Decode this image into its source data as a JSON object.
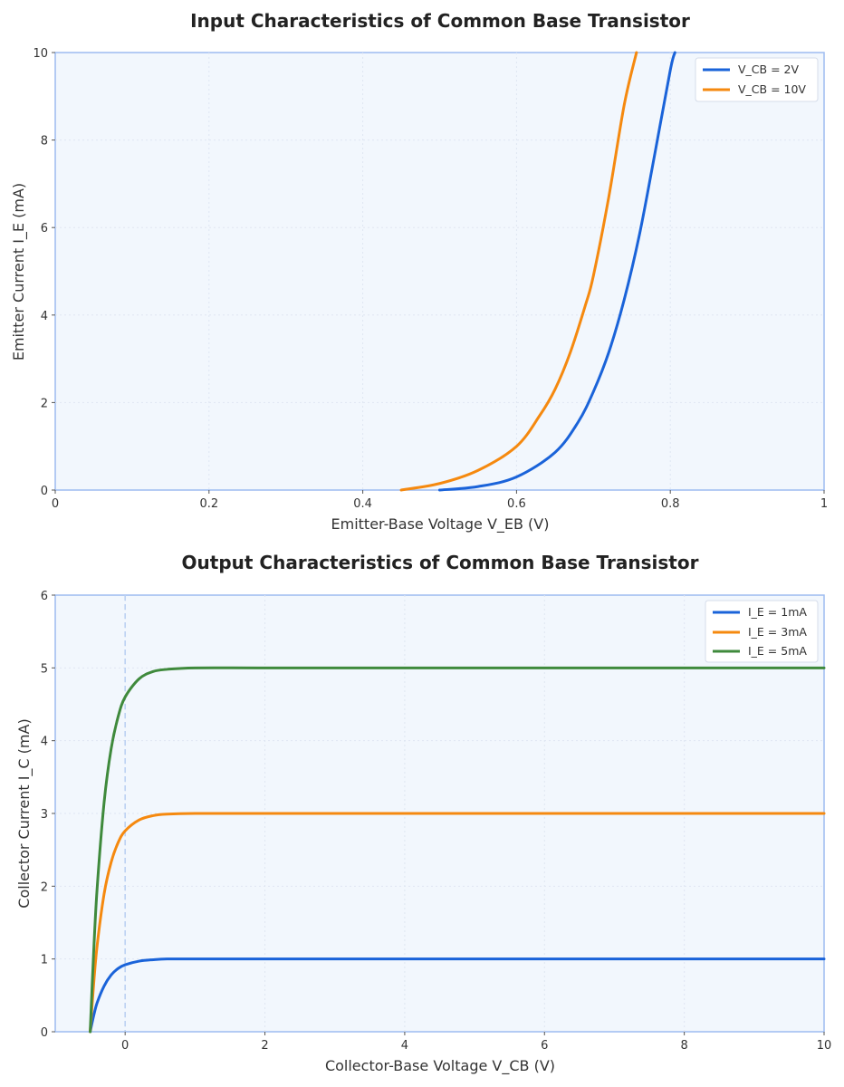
{
  "chart_data": [
    {
      "type": "line",
      "title": "Input Characteristics of Common Base Transistor",
      "xlabel": "Emitter-Base Voltage V_EB (V)",
      "ylabel": "Emitter Current I_E (mA)",
      "xlim": [
        0,
        1
      ],
      "ylim": [
        0,
        10
      ],
      "xticks": [
        0,
        0.2,
        0.4,
        0.6,
        0.8,
        1
      ],
      "xtick_labels": [
        "0",
        "0.2",
        "0.4",
        "0.6",
        "0.8",
        "1"
      ],
      "yticks": [
        0,
        2,
        4,
        6,
        8,
        10
      ],
      "ytick_labels": [
        "0",
        "2",
        "4",
        "6",
        "8",
        "10"
      ],
      "grid": true,
      "legend": "top-right",
      "series": [
        {
          "name": "V_CB = 2V",
          "color": "#1a63d9",
          "x": [
            0.5,
            0.55,
            0.6,
            0.65,
            0.68,
            0.7,
            0.72,
            0.74,
            0.76,
            0.78,
            0.8,
            0.806
          ],
          "y": [
            0.0,
            0.08,
            0.3,
            0.86,
            1.55,
            2.25,
            3.15,
            4.35,
            5.85,
            7.7,
            9.6,
            10.0
          ]
        },
        {
          "name": "V_CB = 10V",
          "color": "#f5890f",
          "x": [
            0.45,
            0.5,
            0.55,
            0.6,
            0.63,
            0.65,
            0.67,
            0.69,
            0.7,
            0.72,
            0.74,
            0.756
          ],
          "y": [
            0.0,
            0.15,
            0.45,
            1.0,
            1.7,
            2.3,
            3.15,
            4.25,
            4.9,
            6.7,
            8.8,
            10.0
          ]
        }
      ]
    },
    {
      "type": "line",
      "title": "Output Characteristics of Common Base Transistor",
      "xlabel": "Collector-Base Voltage V_CB (V)",
      "ylabel": "Collector Current I_C (mA)",
      "xlim": [
        -1,
        10
      ],
      "ylim": [
        0,
        6
      ],
      "xticks": [
        0,
        2,
        4,
        6,
        8,
        10
      ],
      "xtick_labels": [
        "0",
        "2",
        "4",
        "6",
        "8",
        "10"
      ],
      "yticks": [
        0,
        1,
        2,
        3,
        4,
        5,
        6
      ],
      "ytick_labels": [
        "0",
        "1",
        "2",
        "3",
        "4",
        "5",
        "6"
      ],
      "grid": true,
      "legend": "top-right",
      "reference_line_x": 0,
      "series": [
        {
          "name": "I_E = 1mA",
          "color": "#1a63d9",
          "x": [
            -0.5,
            -0.45,
            -0.4,
            -0.3,
            -0.2,
            -0.1,
            0,
            0.2,
            0.4,
            0.6,
            1,
            2,
            4,
            6,
            8,
            10
          ],
          "y": [
            0,
            0.22,
            0.4,
            0.63,
            0.78,
            0.87,
            0.92,
            0.97,
            0.99,
            1.0,
            1.0,
            1.0,
            1.0,
            1.0,
            1.0,
            1.0
          ]
        },
        {
          "name": "I_E = 3mA",
          "color": "#f5890f",
          "x": [
            -0.5,
            -0.45,
            -0.4,
            -0.3,
            -0.2,
            -0.1,
            0,
            0.2,
            0.4,
            0.6,
            1,
            2,
            4,
            6,
            8,
            10
          ],
          "y": [
            0,
            0.66,
            1.19,
            1.9,
            2.33,
            2.6,
            2.76,
            2.91,
            2.97,
            2.99,
            3.0,
            3.0,
            3.0,
            3.0,
            3.0,
            3.0
          ]
        },
        {
          "name": "I_E = 5mA",
          "color": "#3f8a3c",
          "x": [
            -0.5,
            -0.45,
            -0.4,
            -0.3,
            -0.2,
            -0.1,
            0,
            0.2,
            0.4,
            0.6,
            1,
            2,
            4,
            6,
            8,
            10
          ],
          "y": [
            0,
            1.1,
            1.98,
            3.16,
            3.89,
            4.33,
            4.6,
            4.85,
            4.95,
            4.98,
            5.0,
            5.0,
            5.0,
            5.0,
            5.0,
            5.0
          ]
        }
      ]
    }
  ]
}
